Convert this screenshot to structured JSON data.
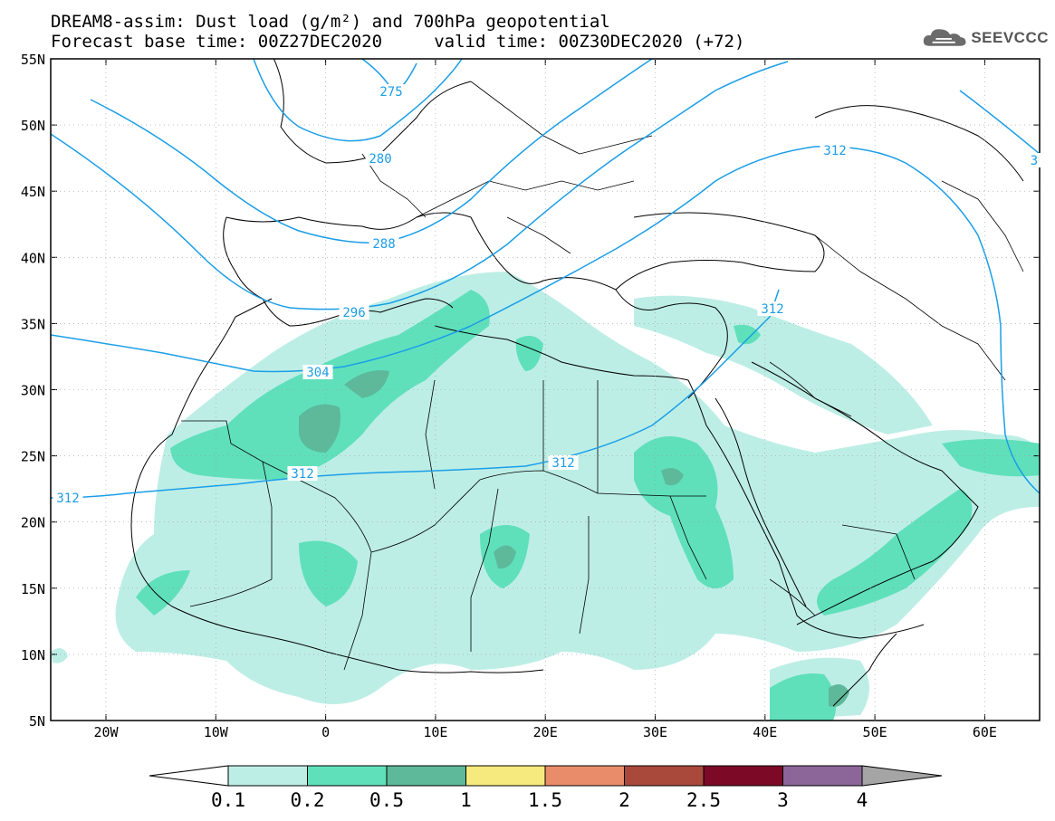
{
  "header": {
    "title_line1": "DREAM8-assim: Dust load (g/m²) and 700hPa geopotential",
    "title_line2": "Forecast base time: 00Z27DEC2020     valid time: 00Z30DEC2020 (+72)"
  },
  "logo": {
    "text": "SEEVCCC",
    "icon": "cloud-icon"
  },
  "axes": {
    "lat_labels": [
      "55N",
      "50N",
      "45N",
      "40N",
      "35N",
      "30N",
      "25N",
      "20N",
      "15N",
      "10N",
      "5N"
    ],
    "lon_labels": [
      "20W",
      "10W",
      "0",
      "10E",
      "20E",
      "30E",
      "40E",
      "50E",
      "60E"
    ]
  },
  "contours": {
    "labels": [
      "275",
      "280",
      "288",
      "296",
      "304",
      "312",
      "312",
      "312",
      "312",
      "312",
      "3"
    ],
    "color": "#1a9ee8"
  },
  "colorbar": {
    "labels": [
      "0.1",
      "0.2",
      "0.5",
      "1",
      "1.5",
      "2",
      "2.5",
      "3",
      "4"
    ],
    "colors": [
      "#bdeee6",
      "#5fe0bb",
      "#5db99a",
      "#f6ea7e",
      "#e98c69",
      "#a9493c",
      "#7c0a26",
      "#8c6699",
      "#a5a5a5"
    ],
    "under_color": "#ffffff"
  },
  "dust_colors": {
    "light": "#bdeee6",
    "medium": "#5fe0bb",
    "dark": "#5db99a"
  }
}
